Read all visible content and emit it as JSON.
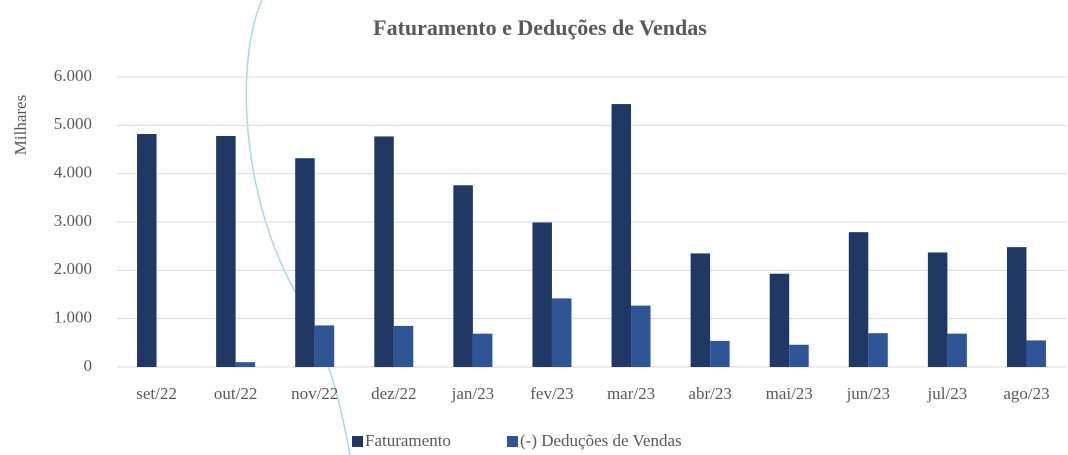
{
  "chart_data": {
    "type": "bar",
    "title": "Faturamento e Deduções de Vendas",
    "y_label": "Milhares",
    "categories": [
      "set/22",
      "out/22",
      "nov/22",
      "dez/22",
      "jan/23",
      "fev/23",
      "mar/23",
      "abr/23",
      "mai/23",
      "jun/23",
      "jul/23",
      "ago/23"
    ],
    "series": [
      {
        "name": "Faturamento",
        "color": "#1f3864",
        "values": [
          4820,
          4780,
          4320,
          4770,
          3760,
          2990,
          5440,
          2350,
          1930,
          2790,
          2370,
          2480
        ]
      },
      {
        "name": "(-) Deduções de Vendas",
        "color": "#2f5597",
        "values": [
          0,
          100,
          860,
          850,
          690,
          1420,
          1270,
          540,
          460,
          700,
          690,
          550
        ]
      }
    ],
    "ylim": [
      0,
      6000
    ],
    "yticks": [
      0,
      {
        "value": 1000,
        "label": "1.000"
      },
      {
        "value": 2000,
        "label": "2.000"
      },
      {
        "value": 3000,
        "label": "3.000"
      },
      {
        "value": 4000,
        "label": "4.000"
      },
      {
        "value": 5000,
        "label": "5.000"
      },
      {
        "value": 6000,
        "label": "6.000"
      }
    ],
    "grid": true,
    "legend": "bottom"
  }
}
